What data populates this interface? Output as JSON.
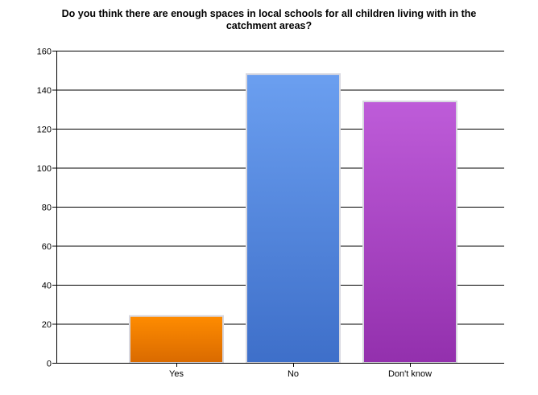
{
  "chart_data": {
    "type": "bar",
    "title_lines": [
      "Do you think there are enough spaces in local schools for all children living with in the",
      "catchment areas?"
    ],
    "categories": [
      "Yes",
      "No",
      "Don't know"
    ],
    "values": [
      24,
      148,
      134
    ],
    "ylim": [
      0,
      160
    ],
    "yticks": [
      0,
      20,
      40,
      60,
      80,
      100,
      120,
      140,
      160
    ],
    "grid": "horizontal",
    "legend": "none",
    "xlabel": "",
    "ylabel": "",
    "bar_colors": [
      {
        "top": "#ff8c00",
        "bottom": "#d96a00"
      },
      {
        "top": "#6b9ff0",
        "bottom": "#3e6fc9"
      },
      {
        "top": "#be5cd9",
        "bottom": "#9330ad"
      }
    ]
  }
}
